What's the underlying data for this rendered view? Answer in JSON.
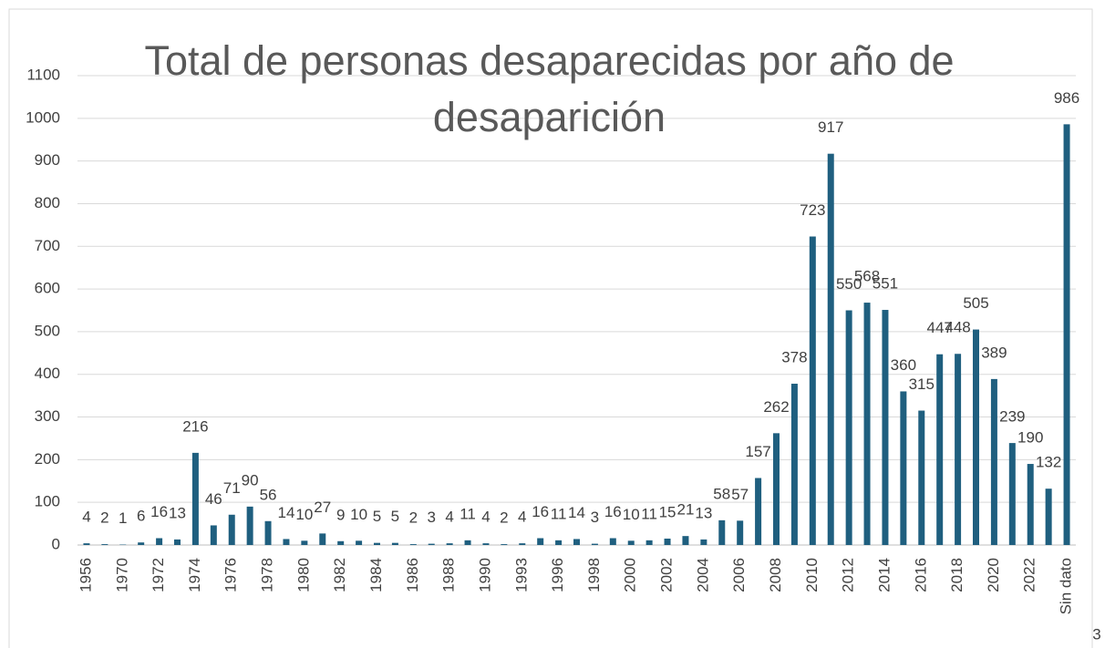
{
  "chart_data": {
    "type": "bar",
    "title": "Total de personas desaparecidas por año de desaparición",
    "categories": [
      "1956",
      null,
      "1970",
      null,
      "1972",
      null,
      "1974",
      null,
      "1976",
      null,
      "1978",
      null,
      "1980",
      null,
      "1982",
      null,
      "1984",
      null,
      "1986",
      null,
      "1988",
      null,
      "1990",
      null,
      "1993",
      null,
      "1996",
      null,
      "1998",
      null,
      "2000",
      null,
      "2002",
      null,
      "2004",
      null,
      "2006",
      null,
      "2008",
      null,
      "2010",
      null,
      "2012",
      null,
      "2014",
      null,
      "2016",
      null,
      "2018",
      null,
      "2020",
      null,
      "2022",
      null,
      "Sin dato"
    ],
    "values": [
      4,
      2,
      1,
      6,
      16,
      13,
      216,
      46,
      71,
      90,
      56,
      14,
      10,
      27,
      9,
      10,
      5,
      5,
      2,
      3,
      4,
      11,
      4,
      2,
      4,
      16,
      11,
      14,
      3,
      16,
      10,
      11,
      15,
      21,
      13,
      58,
      57,
      157,
      262,
      378,
      723,
      917,
      550,
      568,
      551,
      360,
      315,
      447,
      448,
      505,
      389,
      239,
      190,
      132,
      986
    ],
    "color": "#1f5f7f",
    "ylim": [
      0,
      1100
    ],
    "yticks": [
      0,
      100,
      200,
      300,
      400,
      500,
      600,
      700,
      800,
      900,
      1000,
      1100
    ],
    "grid": true
  },
  "page_number": "3"
}
